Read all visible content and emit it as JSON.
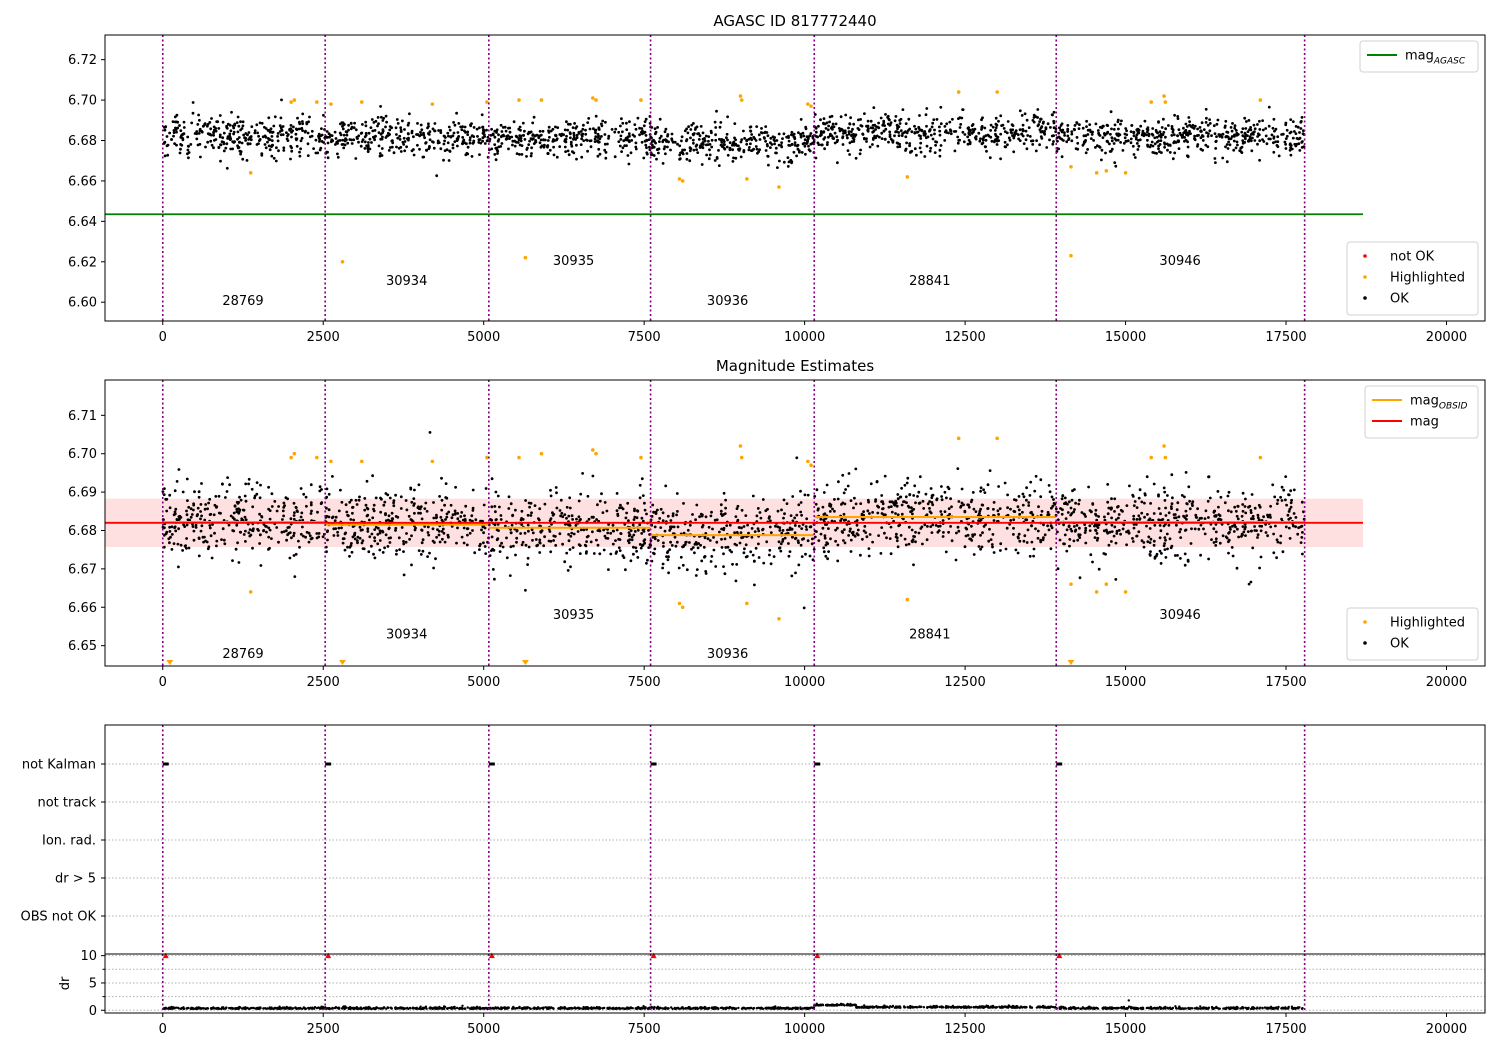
{
  "panels": [
    {
      "id": "agasc",
      "title": "AGASC ID 817772440",
      "type": "scatter",
      "xlim": [
        -900,
        20600
      ],
      "ylim": [
        6.5907,
        6.7322
      ],
      "yticks": [
        "6.60",
        "6.62",
        "6.64",
        "6.66",
        "6.68",
        "6.70",
        "6.72"
      ],
      "ytick_values": [
        6.6,
        6.62,
        6.64,
        6.66,
        6.68,
        6.7,
        6.72
      ],
      "xticks": [
        "0",
        "2500",
        "5000",
        "7500",
        "10000",
        "12500",
        "15000",
        "17500",
        "20000"
      ],
      "xtick_values": [
        0,
        2500,
        5000,
        7500,
        10000,
        12500,
        15000,
        17500,
        20000
      ],
      "band": {
        "center": 6.682,
        "half_width": 0.0055,
        "visible": false
      },
      "lines": [
        {
          "name": "mag",
          "subscript": "AGASC",
          "color": "#008000",
          "y": 6.6435,
          "x_range": [
            -900,
            18700
          ]
        }
      ],
      "obsid_labels": [
        {
          "text": "28769",
          "x": 1250,
          "y": 6.5985
        },
        {
          "text": "30934",
          "x": 3800,
          "y": 6.6085
        },
        {
          "text": "30935",
          "x": 6400,
          "y": 6.6185
        },
        {
          "text": "30936",
          "x": 8800,
          "y": 6.5985
        },
        {
          "text": "28841",
          "x": 11950,
          "y": 6.6085
        },
        {
          "text": "30946",
          "x": 15850,
          "y": 6.6185
        }
      ],
      "legend_top": [
        {
          "label": "mag",
          "subscript": "AGASC",
          "color": "#008000",
          "kind": "line"
        }
      ],
      "legend_bottom": [
        {
          "label": "not OK",
          "color": "#ff0000",
          "kind": "dot"
        },
        {
          "label": "Highlighted",
          "color": "#ffa500",
          "kind": "dot"
        },
        {
          "label": "OK",
          "color": "#000000",
          "kind": "dot"
        }
      ],
      "highlighted_points": [
        [
          2000,
          6.699
        ],
        [
          2050,
          6.7
        ],
        [
          2400,
          6.699
        ],
        [
          2620,
          6.698
        ],
        [
          3100,
          6.699
        ],
        [
          4200,
          6.698
        ],
        [
          5050,
          6.699
        ],
        [
          5550,
          6.7
        ],
        [
          5900,
          6.7
        ],
        [
          6700,
          6.701
        ],
        [
          6750,
          6.7
        ],
        [
          7450,
          6.7
        ],
        [
          8050,
          6.661
        ],
        [
          8100,
          6.66
        ],
        [
          9000,
          6.702
        ],
        [
          9020,
          6.7
        ],
        [
          9100,
          6.661
        ],
        [
          9600,
          6.657
        ],
        [
          10050,
          6.698
        ],
        [
          10100,
          6.697
        ],
        [
          11600,
          6.662
        ],
        [
          12400,
          6.704
        ],
        [
          13000,
          6.704
        ],
        [
          14150,
          6.667
        ],
        [
          14550,
          6.664
        ],
        [
          14700,
          6.665
        ],
        [
          15000,
          6.664
        ],
        [
          15400,
          6.699
        ],
        [
          15600,
          6.702
        ],
        [
          15620,
          6.699
        ],
        [
          17100,
          6.7
        ],
        [
          1370,
          6.664
        ],
        [
          2800,
          6.62
        ],
        [
          5650,
          6.622
        ],
        [
          14150,
          6.623
        ]
      ]
    },
    {
      "id": "mag",
      "title": "Magnitude Estimates",
      "type": "scatter",
      "xlim": [
        -900,
        20600
      ],
      "ylim": [
        6.6447,
        6.7192
      ],
      "yticks": [
        "6.65",
        "6.66",
        "6.67",
        "6.68",
        "6.69",
        "6.70",
        "6.71"
      ],
      "ytick_values": [
        6.65,
        6.66,
        6.67,
        6.68,
        6.69,
        6.7,
        6.71
      ],
      "xticks": [
        "0",
        "2500",
        "5000",
        "7500",
        "10000",
        "12500",
        "15000",
        "17500",
        "20000"
      ],
      "xtick_values": [
        0,
        2500,
        5000,
        7500,
        10000,
        12500,
        15000,
        17500,
        20000
      ],
      "band": {
        "center": 6.682,
        "half_width": 0.0063,
        "visible": true
      },
      "lines": [
        {
          "name": "mag",
          "color": "#ff0000",
          "y": 6.682,
          "x_range": [
            -900,
            18700
          ]
        }
      ],
      "obsid_lines": [
        {
          "x_range": [
            0,
            2530
          ],
          "y": 6.6822
        },
        {
          "x_range": [
            2530,
            5080
          ],
          "y": 6.6815
        },
        {
          "x_range": [
            5080,
            7600
          ],
          "y": 6.6807
        },
        {
          "x_range": [
            7600,
            10150
          ],
          "y": 6.6788
        },
        {
          "x_range": [
            10150,
            13920
          ],
          "y": 6.6835
        },
        {
          "x_range": [
            13920,
            17790
          ],
          "y": 6.6822
        }
      ],
      "obsid_labels": [
        {
          "text": "28769",
          "x": 1250,
          "y": 6.6468
        },
        {
          "text": "30934",
          "x": 3800,
          "y": 6.6518
        },
        {
          "text": "30935",
          "x": 6400,
          "y": 6.657
        },
        {
          "text": "30936",
          "x": 8800,
          "y": 6.6468
        },
        {
          "text": "28841",
          "x": 11950,
          "y": 6.6518
        },
        {
          "text": "30946",
          "x": 15850,
          "y": 6.657
        }
      ],
      "legend_top": [
        {
          "label": "mag",
          "subscript": "OBSID",
          "color": "#ffa500",
          "kind": "line"
        },
        {
          "label": "mag",
          "color": "#ff0000",
          "kind": "line"
        }
      ],
      "legend_bottom": [
        {
          "label": "Highlighted",
          "color": "#ffa500",
          "kind": "dot"
        },
        {
          "label": "OK",
          "color": "#000000",
          "kind": "dot"
        }
      ],
      "highlighted_points": [
        [
          2000,
          6.699
        ],
        [
          2050,
          6.7
        ],
        [
          2400,
          6.699
        ],
        [
          2620,
          6.698
        ],
        [
          3100,
          6.698
        ],
        [
          4200,
          6.698
        ],
        [
          5050,
          6.699
        ],
        [
          5550,
          6.699
        ],
        [
          5900,
          6.7
        ],
        [
          6700,
          6.701
        ],
        [
          6750,
          6.7
        ],
        [
          7450,
          6.699
        ],
        [
          8050,
          6.661
        ],
        [
          8100,
          6.66
        ],
        [
          9000,
          6.702
        ],
        [
          9020,
          6.699
        ],
        [
          9100,
          6.661
        ],
        [
          9600,
          6.657
        ],
        [
          10050,
          6.698
        ],
        [
          10100,
          6.697
        ],
        [
          11600,
          6.662
        ],
        [
          12400,
          6.704
        ],
        [
          13000,
          6.704
        ],
        [
          14150,
          6.666
        ],
        [
          14550,
          6.664
        ],
        [
          14700,
          6.666
        ],
        [
          15000,
          6.664
        ],
        [
          15400,
          6.699
        ],
        [
          15600,
          6.702
        ],
        [
          15620,
          6.699
        ],
        [
          17100,
          6.699
        ],
        [
          1370,
          6.664
        ]
      ],
      "offscale_markers": [
        110,
        2800,
        5650,
        14150
      ]
    },
    {
      "id": "flags",
      "type": "flags",
      "xlim": [
        -900,
        20600
      ],
      "categories": [
        "not Kalman",
        "not track",
        "Ion. rad.",
        "dr > 5",
        "OBS not OK"
      ],
      "flag_marks": [
        {
          "category": "not Kalman",
          "x": [
            0,
            2530,
            5080,
            7600,
            10150,
            13920
          ]
        }
      ]
    },
    {
      "id": "dr",
      "type": "scatter",
      "ylabel": "dr",
      "xlim": [
        -900,
        20600
      ],
      "ylim": [
        -0.5,
        10.3
      ],
      "yticks": [
        "0",
        "5",
        "10"
      ],
      "ytick_values": [
        0,
        5,
        10
      ],
      "xticks": [
        "0",
        "2500",
        "5000",
        "7500",
        "10000",
        "12500",
        "15000",
        "17500",
        "20000"
      ],
      "xtick_values": [
        0,
        2500,
        5000,
        7500,
        10000,
        12500,
        15000,
        17500,
        20000
      ],
      "clip_markers": [
        0,
        2530,
        5080,
        7600,
        10150,
        13920
      ]
    }
  ],
  "obsid_boundaries": [
    0,
    2530,
    5080,
    7600,
    10150,
    13920,
    17790
  ],
  "obsid_segments": [
    {
      "obsid": "28769",
      "start": 0,
      "end": 2530,
      "mean": 6.6822
    },
    {
      "obsid": "30934",
      "start": 2530,
      "end": 5080,
      "mean": 6.6815
    },
    {
      "obsid": "30935",
      "start": 5080,
      "end": 7600,
      "mean": 6.6807
    },
    {
      "obsid": "30936",
      "start": 7600,
      "end": 10150,
      "mean": 6.6788
    },
    {
      "obsid": "28841",
      "start": 10150,
      "end": 13920,
      "mean": 6.6835
    },
    {
      "obsid": "30946",
      "start": 13920,
      "end": 17790,
      "mean": 6.6822
    }
  ],
  "colors": {
    "ok": "#000000",
    "highlighted": "#ffa500",
    "not_ok": "#ff0000",
    "boundary": "#800080",
    "band": "#ffcccc",
    "agasc": "#008000",
    "mag": "#ff0000",
    "obsid_mag": "#ffa500"
  },
  "chart_data": {
    "type": "scatter",
    "title": "AGASC ID 817772440",
    "subtitle": "Magnitude Estimates",
    "xlim": [
      -900,
      20600
    ],
    "mag_agasc": 6.6435,
    "mag_mean": 6.682,
    "series": [
      {
        "name": "OK",
        "obsid_means": [
          6.6822,
          6.6815,
          6.6807,
          6.6788,
          6.6835,
          6.6822
        ]
      },
      {
        "name": "Highlighted",
        "count": 35
      }
    ],
    "obsids": [
      "28769",
      "30934",
      "30935",
      "30936",
      "28841",
      "30946"
    ],
    "obsid_boundaries": [
      0,
      2530,
      5080,
      7600,
      10150,
      13920,
      17790
    ]
  }
}
